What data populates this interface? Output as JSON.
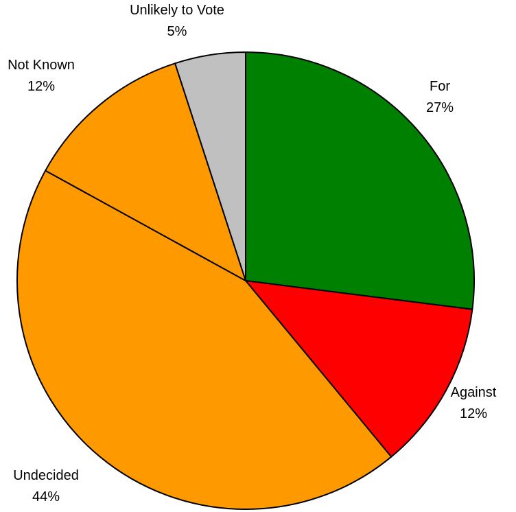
{
  "chart_data": {
    "type": "pie",
    "title": "",
    "start_angle_deg": 0,
    "direction": "clockwise",
    "slices": [
      {
        "label": "For",
        "value": 27,
        "pct_label": "27%",
        "color": "#008000"
      },
      {
        "label": "Against",
        "value": 12,
        "pct_label": "12%",
        "color": "#ff0000"
      },
      {
        "label": "Undecided",
        "value": 44,
        "pct_label": "44%",
        "color": "#ff9900"
      },
      {
        "label": "Not Known",
        "value": 12,
        "pct_label": "12%",
        "color": "#ff9900"
      },
      {
        "label": "Unlikely to Vote",
        "value": 5,
        "pct_label": "5%",
        "color": "#c0c0c0"
      }
    ]
  }
}
